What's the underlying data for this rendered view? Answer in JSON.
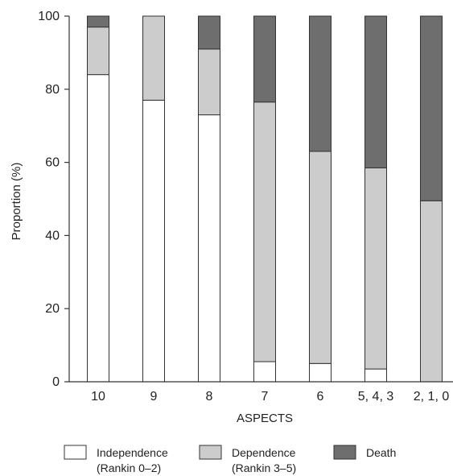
{
  "chart_data": {
    "type": "bar",
    "stacked": true,
    "categories": [
      "10",
      "9",
      "8",
      "7",
      "6",
      "5, 4, 3",
      "2, 1, 0"
    ],
    "series": [
      {
        "name": "Independence",
        "name_line2": "(Rankin 0–2)",
        "color": "#ffffff",
        "values": [
          84,
          77,
          73,
          5.5,
          5,
          3.5,
          0
        ]
      },
      {
        "name": "Dependence",
        "name_line2": "(Rankin 3–5)",
        "color": "#cccccc",
        "values": [
          13,
          23,
          18,
          71,
          58,
          55,
          49.5
        ]
      },
      {
        "name": "Death",
        "name_line2": "",
        "color": "#6e6e6e",
        "values": [
          3,
          0,
          9,
          23.5,
          37,
          41.5,
          50.5
        ]
      }
    ],
    "xlabel": "ASPECTS",
    "ylabel": "Proportion (%)",
    "ylim": [
      0,
      100
    ],
    "yticks": [
      0,
      20,
      40,
      60,
      80,
      100
    ],
    "grid": false,
    "legend_position": "bottom"
  }
}
